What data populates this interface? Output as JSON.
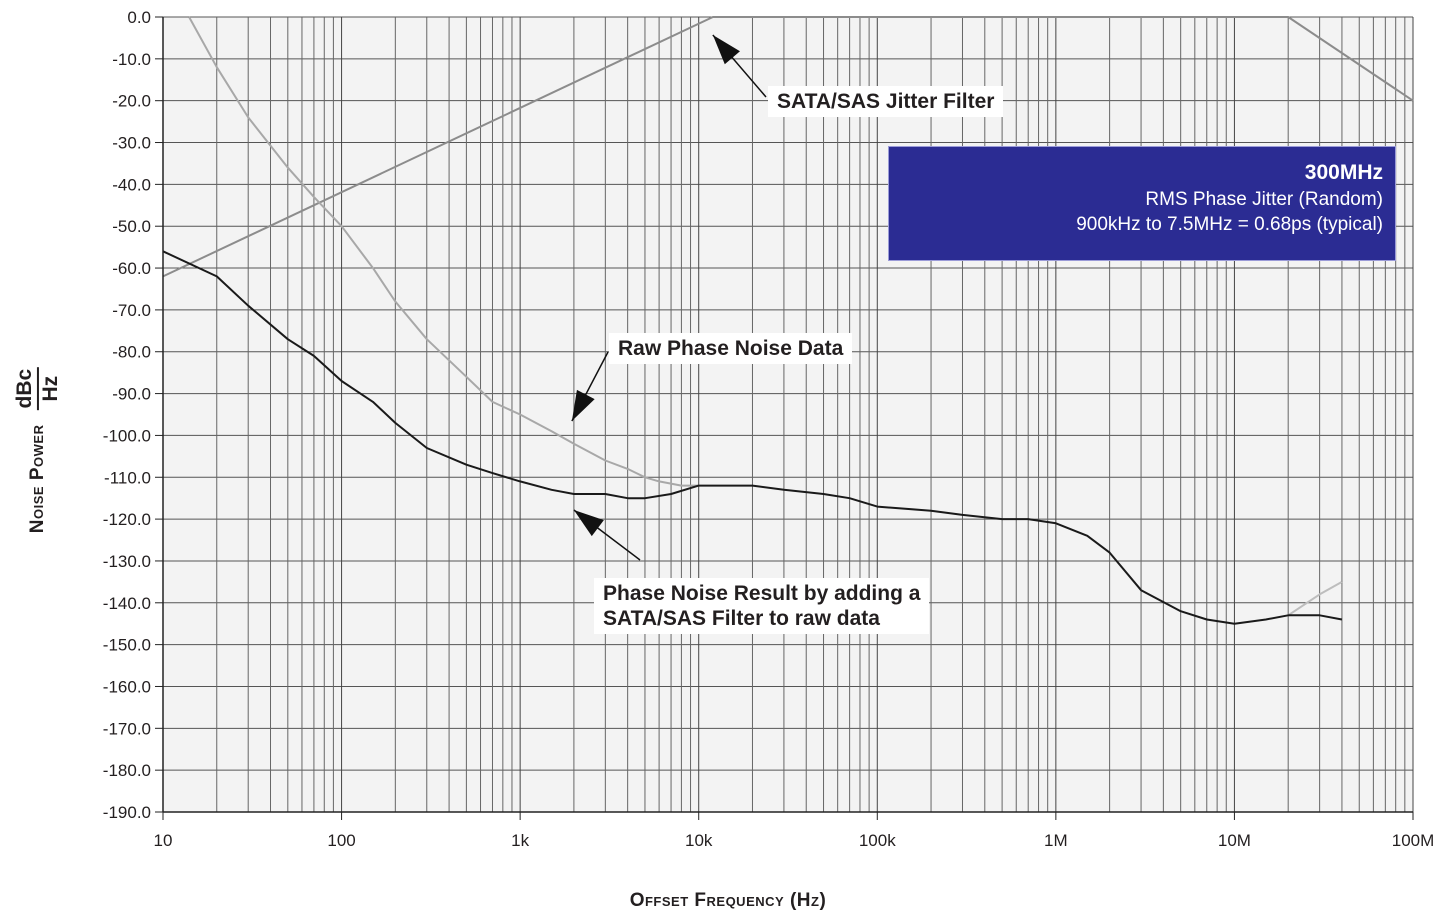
{
  "chart_data": {
    "type": "line",
    "xscale": "log",
    "xlim": [
      10,
      100000000
    ],
    "ylim": [
      -190,
      0
    ],
    "yticks": [
      0,
      -10,
      -20,
      -30,
      -40,
      -50,
      -60,
      -70,
      -80,
      -90,
      -100,
      -110,
      -120,
      -130,
      -140,
      -150,
      -160,
      -170,
      -180,
      -190
    ],
    "ytick_labels": [
      "0.0",
      "-10.0",
      "-20.0",
      "-30.0",
      "-40.0",
      "-50.0",
      "-60.0",
      "-70.0",
      "-80.0",
      "-90.0",
      "-100.0",
      "-110.0",
      "-120.0",
      "-130.0",
      "-140.0",
      "-150.0",
      "-160.0",
      "-170.0",
      "-180.0",
      "-190.0"
    ],
    "xticks": [
      10,
      100,
      1000,
      10000,
      100000,
      1000000,
      10000000,
      100000000
    ],
    "xtick_labels": [
      "10",
      "100",
      "1k",
      "10k",
      "100k",
      "1M",
      "10M",
      "100M"
    ],
    "xlabel": "Offset Frequency (Hz)",
    "ylabel_main": "Noise Power",
    "ylabel_unit_num": "dBc",
    "ylabel_unit_den": "Hz",
    "grid": true,
    "series": [
      {
        "color": "#8c8c8c",
        "x": [
          10,
          12000,
          20000000,
          100000000
        ],
        "y": [
          -62,
          0,
          0,
          -20
        ]
      },
      {
        "color": "#a8a8a8",
        "x": [
          14,
          20,
          30,
          50,
          70,
          100,
          150,
          200,
          300,
          500,
          700,
          1000,
          1500,
          2000,
          3000,
          4000,
          5000,
          6000,
          8000,
          10000
        ],
        "y": [
          0,
          -12,
          -24,
          -36,
          -43,
          -50,
          -60,
          -68,
          -77,
          -86,
          -92,
          -95,
          -99,
          -102,
          -106,
          -108,
          -110,
          -111,
          -112,
          -112
        ]
      },
      {
        "color": "#bdbdbd",
        "x": [
          20000000,
          30000000,
          40000000
        ],
        "y": [
          -143,
          -138,
          -135
        ]
      },
      {
        "color": "#1a1a1a",
        "x": [
          10,
          20,
          30,
          50,
          70,
          100,
          150,
          200,
          300,
          500,
          700,
          1000,
          1500,
          2000,
          3000,
          4000,
          5000,
          7000,
          10000,
          15000,
          20000,
          30000,
          50000,
          70000,
          100000,
          200000,
          300000,
          500000,
          700000,
          1000000,
          1500000,
          2000000,
          3000000,
          5000000,
          7000000,
          10000000,
          15000000,
          20000000,
          30000000,
          40000000
        ],
        "y": [
          -56,
          -62,
          -69,
          -77,
          -81,
          -87,
          -92,
          -97,
          -103,
          -107,
          -109,
          -111,
          -113,
          -114,
          -114,
          -115,
          -115,
          -114,
          -112,
          -112,
          -112,
          -113,
          -114,
          -115,
          -117,
          -118,
          -119,
          -120,
          -120,
          -121,
          -124,
          -128,
          -137,
          -142,
          -144,
          -145,
          -144,
          -143,
          -143,
          -144
        ]
      }
    ],
    "annotations": [
      {
        "text": "SATA/SAS Jitter Filter",
        "points_to": [
          12000,
          0
        ]
      },
      {
        "text": "Raw Phase Noise Data",
        "points_to": [
          2000,
          -98
        ]
      },
      {
        "text": "Phase Noise Result by adding a\nSATA/SAS Filter to raw data",
        "points_to": [
          2000,
          -114
        ]
      }
    ],
    "infobox": {
      "title": "300MHz",
      "line1": "RMS Phase Jitter  (Random)",
      "line2": "900kHz to 7.5MHz = 0.68ps (typical)",
      "background": "#2b2c93"
    }
  }
}
